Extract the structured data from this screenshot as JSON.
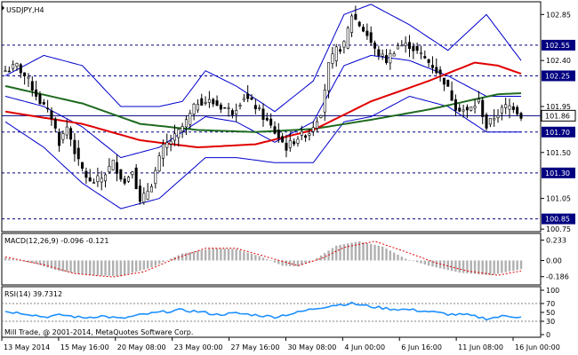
{
  "chart_data": [
    {
      "type": "candlestick",
      "title": "USDJPY,H4",
      "ylim": [
        100.76,
        102.94
      ],
      "y_ticks": [
        "102.85",
        "102.40",
        "101.95",
        "101.50",
        "101.05",
        "100.75"
      ],
      "levels": [
        {
          "value": 102.55,
          "label": "102.55",
          "style": "dash"
        },
        {
          "value": 102.25,
          "label": "102.25",
          "style": "dash"
        },
        {
          "value": 101.86,
          "label": "101.86",
          "style": "solid",
          "current": true
        },
        {
          "value": 101.7,
          "label": "101.70",
          "style": "dash"
        },
        {
          "value": 101.3,
          "label": "101.30",
          "style": "dash"
        },
        {
          "value": 100.85,
          "label": "100.85",
          "style": "dash"
        }
      ],
      "anchors_close": [
        [
          0,
          102.3
        ],
        [
          3,
          102.35
        ],
        [
          6,
          102.2
        ],
        [
          9,
          102.0
        ],
        [
          12,
          101.85
        ],
        [
          14,
          101.6
        ],
        [
          16,
          101.75
        ],
        [
          19,
          101.4
        ],
        [
          22,
          101.2
        ],
        [
          25,
          101.25
        ],
        [
          28,
          101.4
        ],
        [
          31,
          101.2
        ],
        [
          33,
          101.35
        ],
        [
          35,
          101.0
        ],
        [
          38,
          101.2
        ],
        [
          41,
          101.55
        ],
        [
          44,
          101.65
        ],
        [
          47,
          101.8
        ],
        [
          50,
          102.0
        ],
        [
          53,
          102.0
        ],
        [
          56,
          101.95
        ],
        [
          59,
          101.9
        ],
        [
          62,
          102.05
        ],
        [
          65,
          101.95
        ],
        [
          68,
          101.8
        ],
        [
          70,
          101.7
        ],
        [
          73,
          101.55
        ],
        [
          76,
          101.65
        ],
        [
          79,
          101.7
        ],
        [
          82,
          101.9
        ],
        [
          84,
          102.35
        ],
        [
          86,
          102.5
        ],
        [
          88,
          102.55
        ],
        [
          90,
          102.85
        ],
        [
          92,
          102.75
        ],
        [
          94,
          102.65
        ],
        [
          96,
          102.5
        ],
        [
          99,
          102.4
        ],
        [
          102,
          102.55
        ],
        [
          105,
          102.55
        ],
        [
          108,
          102.45
        ],
        [
          111,
          102.35
        ],
        [
          114,
          102.2
        ],
        [
          117,
          101.95
        ],
        [
          120,
          101.9
        ],
        [
          123,
          102.0
        ],
        [
          125,
          101.75
        ],
        [
          127,
          101.85
        ],
        [
          130,
          101.95
        ],
        [
          132,
          101.95
        ],
        [
          134,
          101.86
        ]
      ],
      "ma_red": [
        [
          0,
          101.9
        ],
        [
          20,
          101.78
        ],
        [
          35,
          101.62
        ],
        [
          50,
          101.55
        ],
        [
          65,
          101.58
        ],
        [
          80,
          101.72
        ],
        [
          95,
          102.0
        ],
        [
          110,
          102.2
        ],
        [
          122,
          102.38
        ],
        [
          128,
          102.35
        ],
        [
          134,
          102.27
        ]
      ],
      "ma_green": [
        [
          0,
          102.15
        ],
        [
          20,
          101.98
        ],
        [
          35,
          101.78
        ],
        [
          50,
          101.72
        ],
        [
          65,
          101.7
        ],
        [
          80,
          101.73
        ],
        [
          95,
          101.82
        ],
        [
          110,
          101.92
        ],
        [
          122,
          102.02
        ],
        [
          128,
          102.07
        ],
        [
          134,
          102.08
        ]
      ],
      "bollinger_upper": [
        [
          0,
          102.25
        ],
        [
          10,
          102.45
        ],
        [
          20,
          102.35
        ],
        [
          30,
          101.95
        ],
        [
          40,
          101.95
        ],
        [
          46,
          102.0
        ],
        [
          52,
          102.3
        ],
        [
          60,
          102.15
        ],
        [
          70,
          101.9
        ],
        [
          80,
          102.2
        ],
        [
          88,
          102.85
        ],
        [
          95,
          102.95
        ],
        [
          105,
          102.75
        ],
        [
          115,
          102.5
        ],
        [
          125,
          102.85
        ],
        [
          134,
          102.4
        ]
      ],
      "bollinger_lower": [
        [
          0,
          101.8
        ],
        [
          10,
          101.55
        ],
        [
          20,
          101.2
        ],
        [
          30,
          100.95
        ],
        [
          40,
          101.05
        ],
        [
          46,
          101.25
        ],
        [
          52,
          101.45
        ],
        [
          60,
          101.45
        ],
        [
          70,
          101.4
        ],
        [
          80,
          101.4
        ],
        [
          88,
          101.8
        ],
        [
          95,
          101.85
        ],
        [
          105,
          102.05
        ],
        [
          115,
          101.95
        ],
        [
          125,
          101.7
        ],
        [
          134,
          101.7
        ]
      ],
      "bollinger_mid": [
        [
          0,
          102.05
        ],
        [
          10,
          101.95
        ],
        [
          20,
          101.75
        ],
        [
          30,
          101.45
        ],
        [
          40,
          101.55
        ],
        [
          46,
          101.7
        ],
        [
          52,
          101.85
        ],
        [
          60,
          101.8
        ],
        [
          70,
          101.6
        ],
        [
          80,
          101.8
        ],
        [
          88,
          102.35
        ],
        [
          95,
          102.45
        ],
        [
          105,
          102.4
        ],
        [
          115,
          102.25
        ],
        [
          125,
          102.05
        ],
        [
          134,
          102.05
        ]
      ],
      "colors": {
        "candle": "#000000",
        "ma_red": "#e00000",
        "ma_green": "#1f6b1f",
        "bands": "#0000cc",
        "grid": "#000080"
      }
    },
    {
      "type": "bar",
      "title": "MACD(12,26,9) -0.096 -0.121",
      "ylim": [
        -0.26,
        0.28
      ],
      "y_ticks": [
        "0.233",
        "0.00",
        "-0.186"
      ],
      "anchors_hist": [
        [
          0,
          0.03
        ],
        [
          8,
          -0.04
        ],
        [
          14,
          -0.12
        ],
        [
          22,
          -0.17
        ],
        [
          30,
          -0.18
        ],
        [
          38,
          -0.08
        ],
        [
          46,
          0.08
        ],
        [
          54,
          0.14
        ],
        [
          60,
          0.13
        ],
        [
          66,
          0.05
        ],
        [
          72,
          -0.06
        ],
        [
          76,
          -0.07
        ],
        [
          80,
          0.0
        ],
        [
          86,
          0.17
        ],
        [
          92,
          0.22
        ],
        [
          98,
          0.16
        ],
        [
          104,
          0.02
        ],
        [
          110,
          -0.06
        ],
        [
          118,
          -0.14
        ],
        [
          126,
          -0.17
        ],
        [
          134,
          -0.1
        ]
      ],
      "anchors_signal": [
        [
          0,
          0.04
        ],
        [
          10,
          -0.05
        ],
        [
          18,
          -0.15
        ],
        [
          28,
          -0.19
        ],
        [
          36,
          -0.13
        ],
        [
          44,
          0.02
        ],
        [
          52,
          0.14
        ],
        [
          60,
          0.14
        ],
        [
          68,
          0.04
        ],
        [
          76,
          -0.06
        ],
        [
          82,
          0.02
        ],
        [
          88,
          0.15
        ],
        [
          96,
          0.22
        ],
        [
          104,
          0.1
        ],
        [
          112,
          -0.03
        ],
        [
          120,
          -0.12
        ],
        [
          128,
          -0.17
        ],
        [
          134,
          -0.12
        ]
      ],
      "colors": {
        "hist": "#b0b0b0",
        "signal": "#e00000"
      }
    },
    {
      "type": "line",
      "title": "RSI(14) 39.7312",
      "ylim": [
        0,
        100
      ],
      "y_ticks": [
        "100",
        "70",
        "50",
        "30",
        "0"
      ],
      "levels": [
        70,
        30
      ],
      "anchors": [
        [
          0,
          52
        ],
        [
          5,
          48
        ],
        [
          10,
          40
        ],
        [
          15,
          44
        ],
        [
          20,
          38
        ],
        [
          25,
          42
        ],
        [
          30,
          36
        ],
        [
          35,
          44
        ],
        [
          40,
          50
        ],
        [
          45,
          55
        ],
        [
          50,
          52
        ],
        [
          55,
          45
        ],
        [
          60,
          48
        ],
        [
          65,
          44
        ],
        [
          70,
          40
        ],
        [
          75,
          48
        ],
        [
          80,
          58
        ],
        [
          85,
          66
        ],
        [
          90,
          70
        ],
        [
          95,
          63
        ],
        [
          100,
          58
        ],
        [
          105,
          56
        ],
        [
          110,
          52
        ],
        [
          115,
          46
        ],
        [
          120,
          44
        ],
        [
          125,
          36
        ],
        [
          130,
          42
        ],
        [
          134,
          39.73
        ]
      ],
      "colors": {
        "line": "#1e90ff"
      }
    }
  ],
  "watermark": "Mill Trade, @ 2001-2014, MetaQuotes Software Corp.",
  "x_ticks": [
    "13 May 2014",
    "15 May 16:00",
    "20 May 08:00",
    "23 May 00:00",
    "27 May 16:00",
    "30 May 08:00",
    "4 Jun 00:00",
    "6 Jun 16:00",
    "11 Jun 08:00",
    "16 Jun 00:00"
  ]
}
